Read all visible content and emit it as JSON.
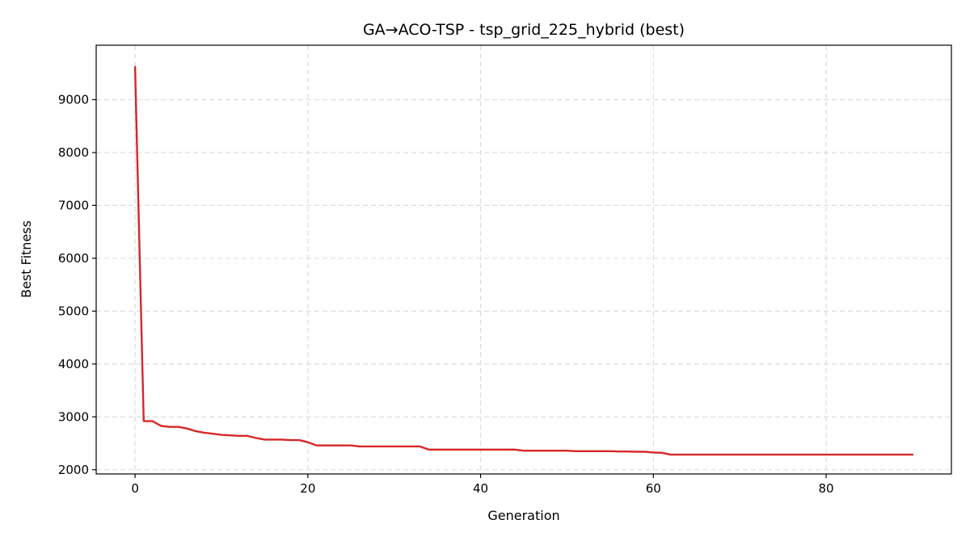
{
  "chart_data": {
    "type": "line",
    "title": "GA→ACO-TSP - tsp_grid_225_hybrid (best)",
    "xlabel": "Generation",
    "ylabel": "Best Fitness",
    "xlim": [
      -4.5,
      94.5
    ],
    "ylim": [
      1920,
      10030
    ],
    "xticks": [
      0,
      20,
      40,
      60,
      80
    ],
    "yticks": [
      2000,
      3000,
      4000,
      5000,
      6000,
      7000,
      8000,
      9000
    ],
    "grid": true,
    "series": [
      {
        "color": "#d62728",
        "x": [
          0,
          1,
          2,
          3,
          4,
          5,
          6,
          7,
          8,
          9,
          10,
          11,
          12,
          13,
          14,
          15,
          16,
          17,
          18,
          19,
          20,
          21,
          22,
          23,
          24,
          25,
          26,
          27,
          28,
          29,
          30,
          31,
          32,
          33,
          34,
          35,
          36,
          37,
          38,
          39,
          40,
          41,
          42,
          43,
          44,
          45,
          46,
          47,
          48,
          49,
          50,
          51,
          52,
          53,
          54,
          55,
          56,
          57,
          58,
          59,
          60,
          61,
          62,
          63,
          64,
          65,
          66,
          67,
          68,
          69,
          70,
          71,
          72,
          73,
          74,
          75,
          76,
          77,
          78,
          79,
          80,
          81,
          82,
          83,
          84,
          85,
          86,
          87,
          88,
          89,
          90
        ],
        "y": [
          9620,
          2920,
          2920,
          2830,
          2810,
          2810,
          2780,
          2730,
          2700,
          2680,
          2660,
          2650,
          2640,
          2640,
          2600,
          2570,
          2570,
          2570,
          2560,
          2560,
          2520,
          2460,
          2460,
          2460,
          2460,
          2460,
          2440,
          2440,
          2440,
          2440,
          2440,
          2440,
          2440,
          2440,
          2380,
          2380,
          2380,
          2380,
          2380,
          2380,
          2380,
          2380,
          2380,
          2380,
          2380,
          2360,
          2360,
          2360,
          2360,
          2360,
          2360,
          2350,
          2350,
          2350,
          2350,
          2350,
          2345,
          2345,
          2340,
          2340,
          2325,
          2320,
          2285,
          2285,
          2285,
          2285,
          2285,
          2285,
          2285,
          2285,
          2285,
          2285,
          2285,
          2285,
          2285,
          2285,
          2285,
          2285,
          2285,
          2285,
          2285,
          2285,
          2285,
          2285,
          2285,
          2285,
          2285,
          2285,
          2285,
          2285,
          2285
        ]
      }
    ]
  }
}
